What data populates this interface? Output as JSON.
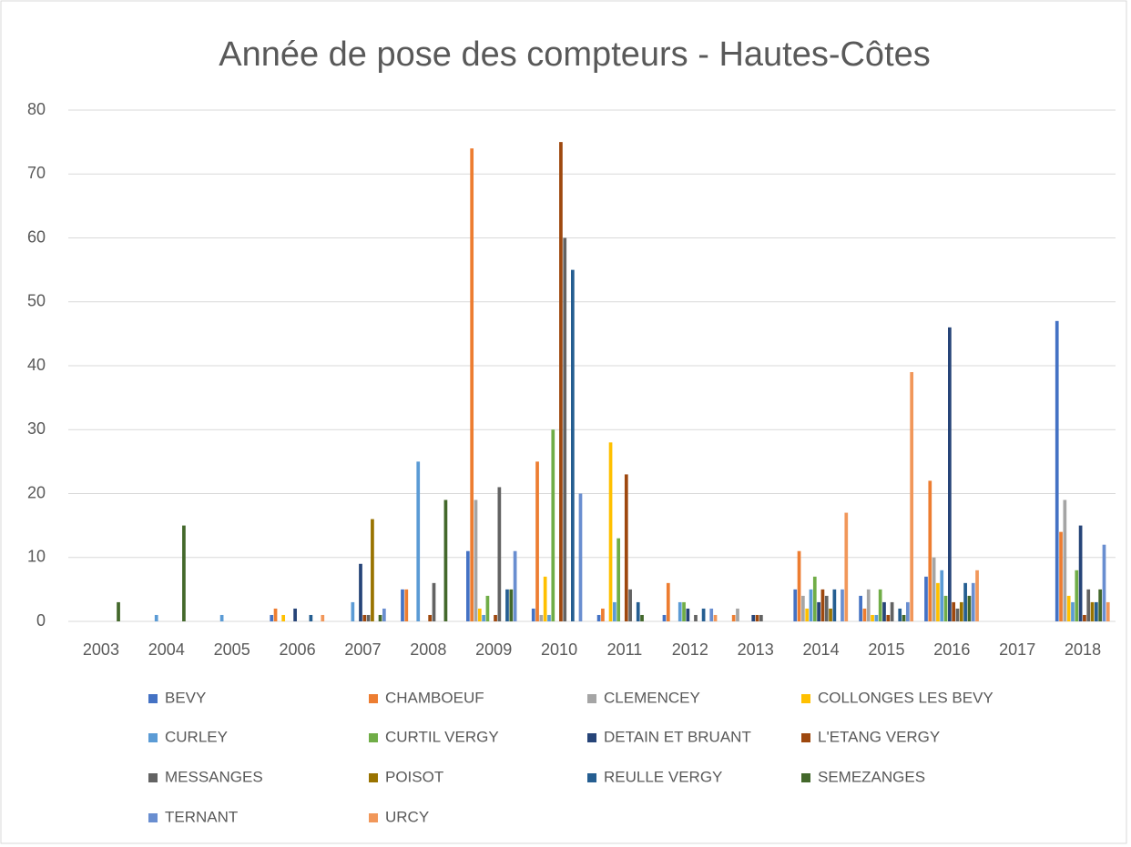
{
  "chart_data": {
    "type": "bar",
    "title": "Année de pose des compteurs - Hautes-Côtes",
    "categories": [
      "2003",
      "2004",
      "2005",
      "2006",
      "2007",
      "2008",
      "2009",
      "2010",
      "2011",
      "2012",
      "2013",
      "2014",
      "2015",
      "2016",
      "2017",
      "2018"
    ],
    "series": [
      {
        "name": "BEVY",
        "color": "#4472c4",
        "values": [
          0,
          0,
          0,
          1,
          0,
          5,
          11,
          2,
          1,
          1,
          0,
          5,
          4,
          7,
          0,
          47
        ]
      },
      {
        "name": "CHAMBOEUF",
        "color": "#ed7d31",
        "values": [
          0,
          0,
          0,
          2,
          0,
          5,
          74,
          25,
          2,
          6,
          1,
          11,
          2,
          22,
          0,
          14
        ]
      },
      {
        "name": "CLEMENCEY",
        "color": "#a5a5a5",
        "values": [
          0,
          0,
          0,
          0,
          0,
          0,
          19,
          1,
          0,
          0,
          2,
          4,
          5,
          10,
          0,
          19
        ]
      },
      {
        "name": "COLLONGES LES BEVY",
        "color": "#ffc000",
        "values": [
          0,
          0,
          0,
          1,
          0,
          0,
          2,
          7,
          28,
          0,
          0,
          2,
          1,
          6,
          0,
          4
        ]
      },
      {
        "name": "CURLEY",
        "color": "#5b9bd5",
        "values": [
          0,
          1,
          1,
          0,
          3,
          25,
          1,
          1,
          3,
          3,
          0,
          5,
          1,
          8,
          0,
          3
        ]
      },
      {
        "name": "CURTIL VERGY",
        "color": "#70ad47",
        "values": [
          0,
          0,
          0,
          0,
          0,
          0,
          4,
          30,
          13,
          3,
          0,
          7,
          5,
          4,
          0,
          8
        ]
      },
      {
        "name": "DETAIN ET BRUANT",
        "color": "#264478",
        "values": [
          0,
          0,
          0,
          2,
          9,
          0,
          0,
          0,
          0,
          2,
          1,
          3,
          3,
          46,
          0,
          15
        ]
      },
      {
        "name": "L'ETANG VERGY",
        "color": "#9e480e",
        "values": [
          0,
          0,
          0,
          0,
          1,
          1,
          1,
          75,
          23,
          0,
          1,
          5,
          1,
          3,
          0,
          1
        ]
      },
      {
        "name": "MESSANGES",
        "color": "#636363",
        "values": [
          0,
          0,
          0,
          0,
          1,
          6,
          21,
          60,
          5,
          1,
          1,
          4,
          3,
          2,
          0,
          5
        ]
      },
      {
        "name": "POISOT",
        "color": "#997300",
        "values": [
          0,
          0,
          0,
          0,
          16,
          0,
          0,
          0,
          0,
          0,
          0,
          2,
          0,
          3,
          0,
          3
        ]
      },
      {
        "name": "REULLE VERGY",
        "color": "#255e91",
        "values": [
          0,
          0,
          0,
          1,
          0,
          0,
          5,
          55,
          3,
          2,
          0,
          5,
          2,
          6,
          0,
          3
        ]
      },
      {
        "name": "SEMEZANGES",
        "color": "#43682b",
        "values": [
          3,
          15,
          0,
          0,
          1,
          19,
          5,
          0,
          1,
          0,
          0,
          0,
          1,
          4,
          0,
          5
        ]
      },
      {
        "name": "TERNANT",
        "color": "#698ed0",
        "values": [
          0,
          0,
          0,
          0,
          2,
          0,
          11,
          20,
          0,
          2,
          0,
          5,
          3,
          6,
          0,
          12
        ]
      },
      {
        "name": "URCY",
        "color": "#f1975a",
        "values": [
          0,
          0,
          0,
          1,
          0,
          0,
          0,
          0,
          0,
          1,
          0,
          17,
          39,
          8,
          0,
          3
        ]
      }
    ],
    "ylim": [
      0,
      80
    ],
    "yticks": [
      0,
      10,
      20,
      30,
      40,
      50,
      60,
      70,
      80
    ],
    "grid": true
  }
}
